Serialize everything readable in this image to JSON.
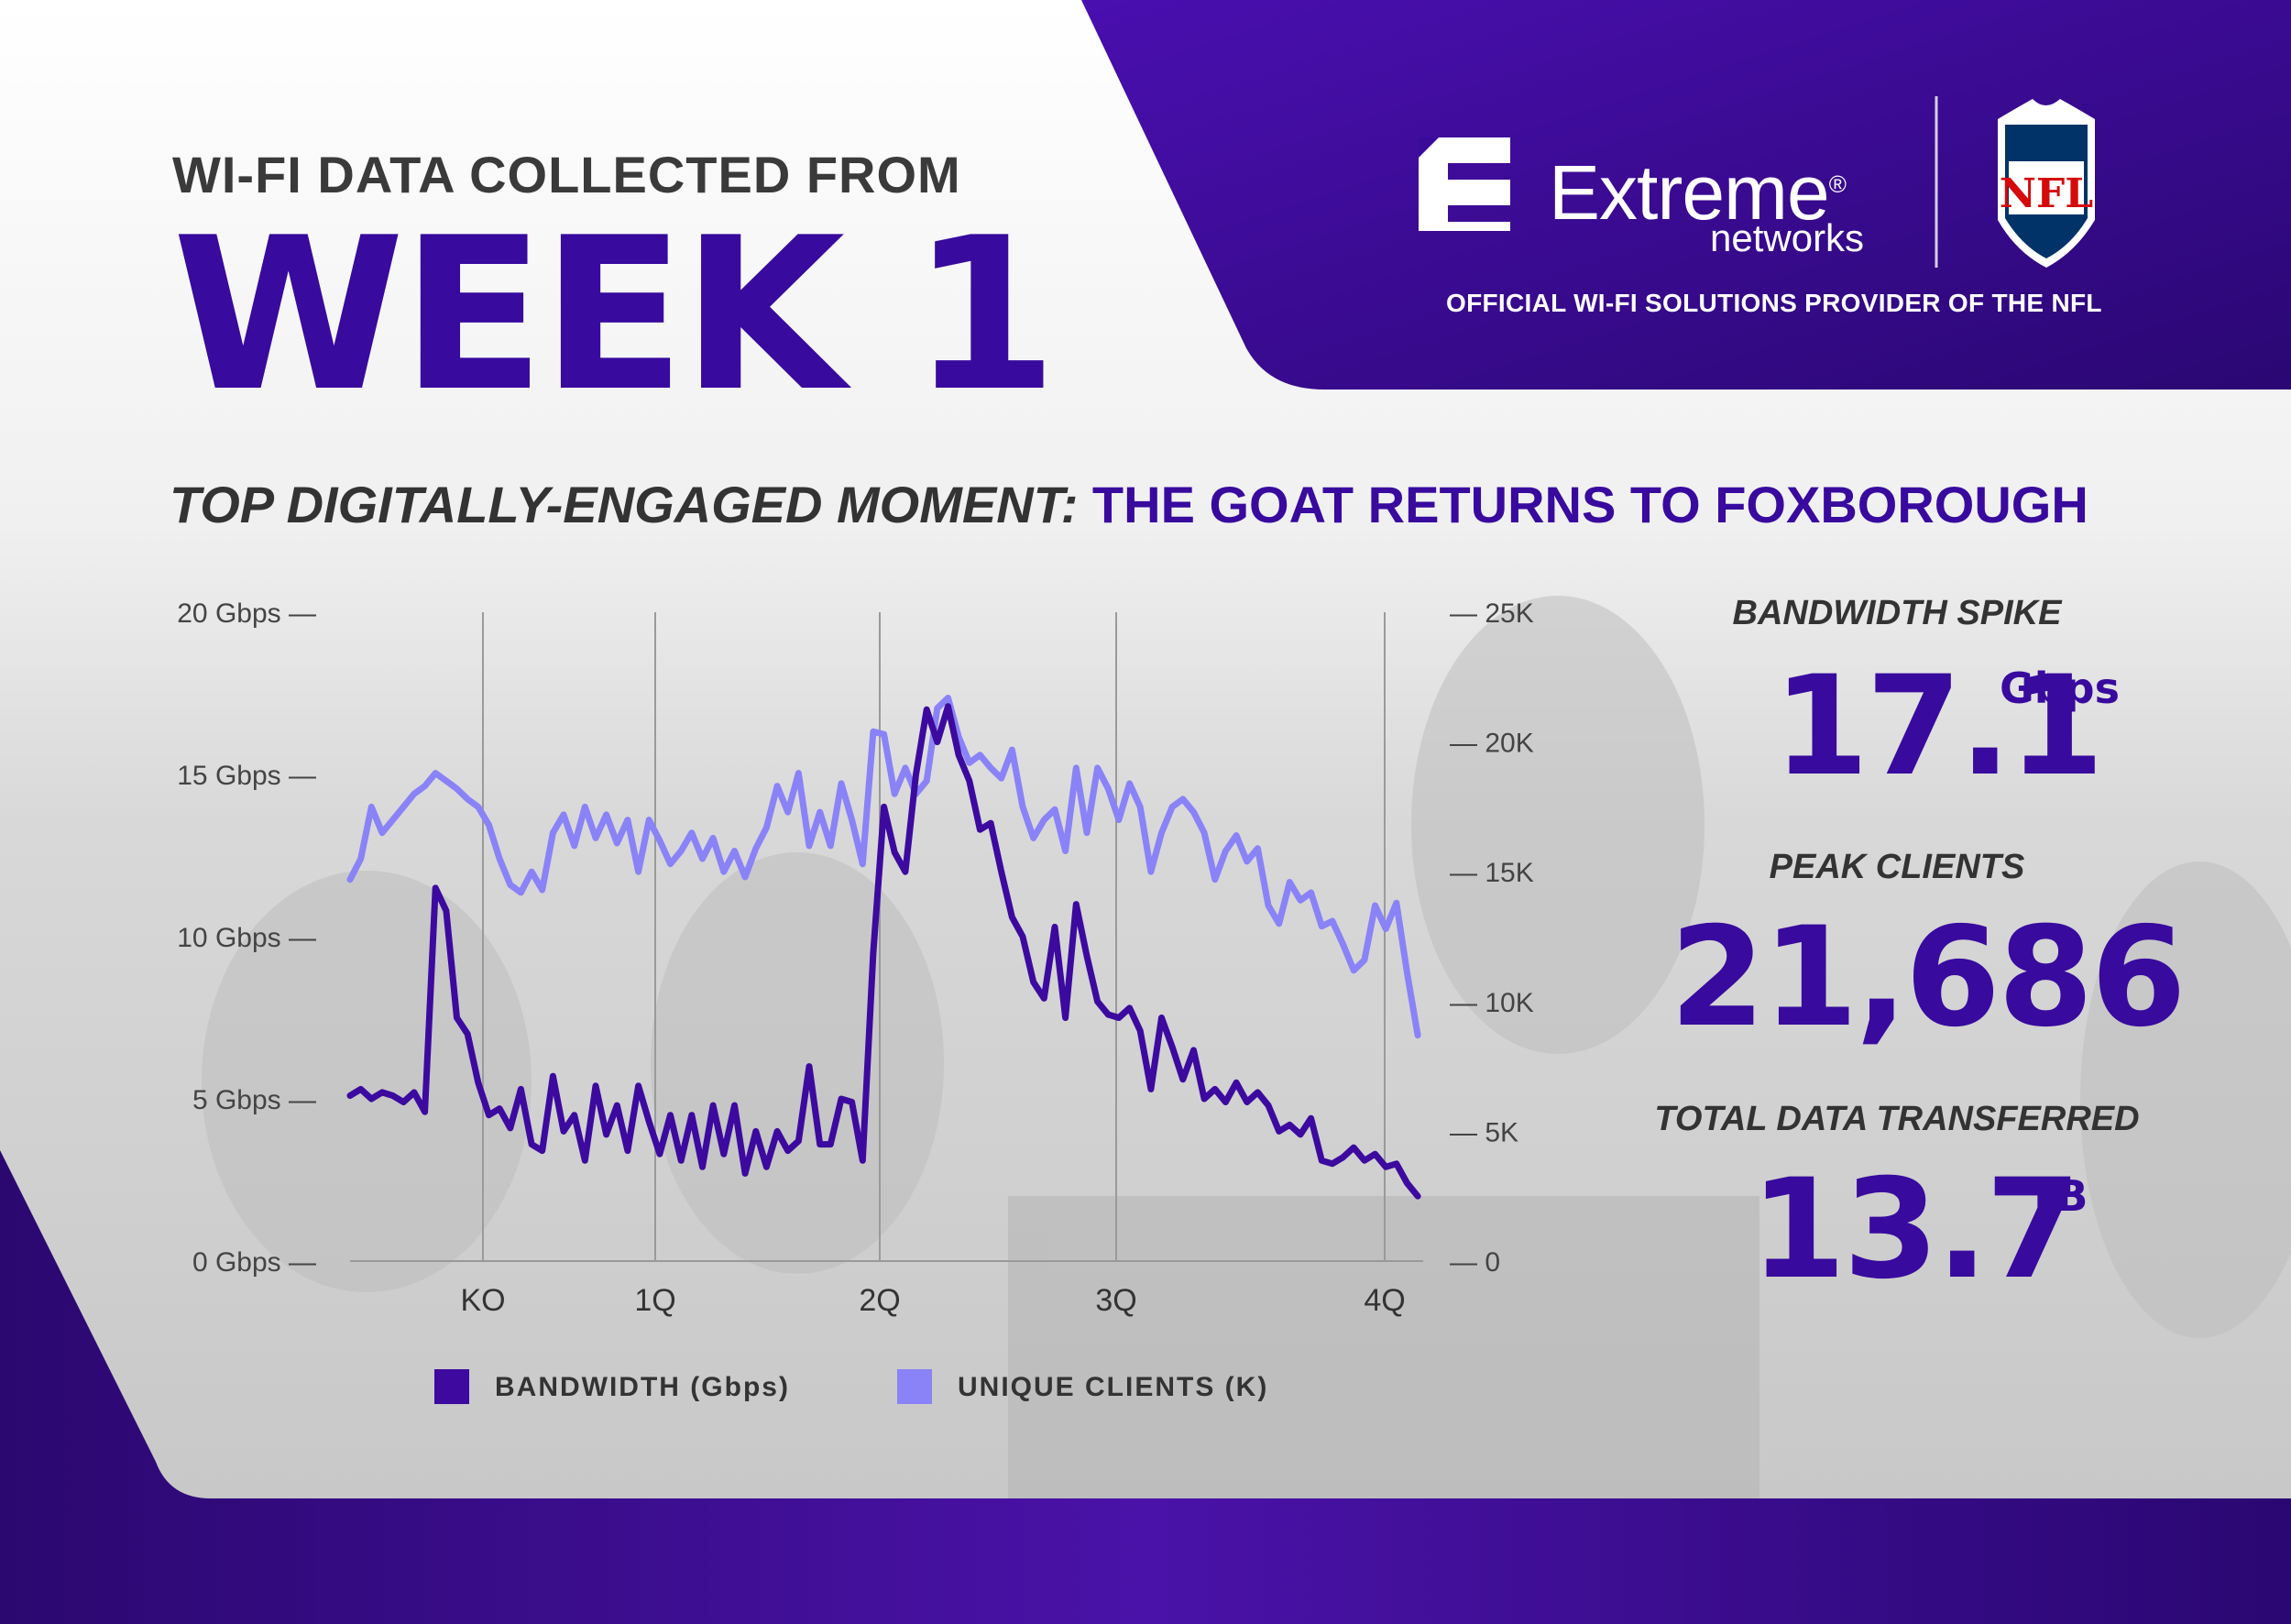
{
  "header": {
    "label": "WI-FI DATA COLLECTED FROM",
    "week": "WEEK 1"
  },
  "brand": {
    "name": "Extreme",
    "registered": "®",
    "sub": "networks",
    "tagline": "OFFICIAL WI-FI SOLUTIONS PROVIDER OF THE NFL",
    "partner_logo": "NFL"
  },
  "moment": {
    "lead": "TOP DIGITALLY-ENGAGED MOMENT:",
    "title": "THE GOAT RETURNS TO FOXBOROUGH"
  },
  "stats": [
    {
      "label": "BANDWIDTH SPIKE",
      "value": "17.1",
      "unit": "Gbps"
    },
    {
      "label": "PEAK CLIENTS",
      "value": "21,686",
      "unit": ""
    },
    {
      "label": "TOTAL DATA TRANSFERRED",
      "value": "13.7",
      "unit": "TB"
    }
  ],
  "colors": {
    "brand_purple": "#380a9e",
    "bandwidth_line": "#3c0a9f",
    "clients_line": "#8a82f7",
    "dark_band": "#2a0a72"
  },
  "chart_data": {
    "type": "line",
    "x_categories": [
      "KO",
      "1Q",
      "2Q",
      "3Q",
      "4Q"
    ],
    "y_left": {
      "ticks": [
        "0 Gbps",
        "5 Gbps",
        "10 Gbps",
        "15 Gbps",
        "20 Gbps"
      ],
      "range": [
        0,
        20
      ]
    },
    "y_right": {
      "ticks": [
        "0",
        "5K",
        "10K",
        "15K",
        "20K",
        "25K"
      ],
      "range": [
        0,
        25
      ]
    },
    "grid_vertical": true,
    "legend_position": "bottom",
    "series": [
      {
        "name": "BANDWIDTH (Gbps)",
        "axis": "left",
        "color": "#3c0a9f",
        "x": [
          0,
          1,
          2,
          3,
          4,
          5,
          6,
          7,
          8,
          9,
          10,
          11,
          12,
          13,
          14,
          15,
          16,
          17,
          18,
          19,
          20,
          21,
          22,
          23,
          24,
          25,
          26,
          27,
          28,
          29,
          30,
          31,
          32,
          33,
          34,
          35,
          36,
          37,
          38,
          39,
          40,
          41,
          42,
          43,
          44,
          45,
          46,
          47,
          48,
          49,
          50,
          51,
          52,
          53,
          54,
          55,
          56,
          57,
          58,
          59,
          60,
          61,
          62,
          63,
          64,
          65,
          66,
          67,
          68,
          69,
          70,
          71,
          72,
          73,
          74,
          75,
          76,
          77,
          78,
          79,
          80,
          81,
          82,
          83,
          84,
          85,
          86,
          87,
          88,
          89,
          90,
          91,
          92,
          93,
          94,
          95,
          96,
          97,
          98,
          99,
          100
        ],
        "values": [
          5.1,
          5.3,
          5.0,
          5.2,
          5.1,
          4.9,
          5.2,
          4.6,
          11.5,
          10.8,
          7.5,
          7.0,
          5.5,
          4.5,
          4.7,
          4.1,
          5.3,
          3.6,
          3.4,
          5.7,
          4.0,
          4.5,
          3.1,
          5.4,
          3.9,
          4.8,
          3.4,
          5.4,
          4.3,
          3.3,
          4.5,
          3.1,
          4.5,
          2.9,
          4.8,
          3.3,
          4.8,
          2.7,
          4.0,
          2.9,
          4.0,
          3.4,
          3.7,
          6.0,
          3.6,
          3.6,
          5.0,
          4.9,
          3.1,
          9.5,
          14.0,
          12.6,
          12.0,
          15.0,
          17.0,
          16.0,
          17.1,
          15.6,
          14.8,
          13.3,
          13.5,
          12.0,
          10.6,
          10.0,
          8.6,
          8.1,
          10.3,
          7.5,
          11.0,
          9.4,
          8.0,
          7.6,
          7.5,
          7.8,
          7.1,
          5.3,
          7.5,
          6.6,
          5.6,
          6.5,
          5.0,
          5.3,
          4.9,
          5.5,
          4.9,
          5.2,
          4.8,
          4.0,
          4.2,
          3.9,
          4.4,
          3.1,
          3.0,
          3.2,
          3.5,
          3.1,
          3.3,
          2.9,
          3.0,
          2.4,
          2.0
        ]
      },
      {
        "name": "UNIQUE CLIENTS (K)",
        "axis": "right",
        "color": "#8a82f7",
        "x": [
          0,
          1,
          2,
          3,
          4,
          5,
          6,
          7,
          8,
          9,
          10,
          11,
          12,
          13,
          14,
          15,
          16,
          17,
          18,
          19,
          20,
          21,
          22,
          23,
          24,
          25,
          26,
          27,
          28,
          29,
          30,
          31,
          32,
          33,
          34,
          35,
          36,
          37,
          38,
          39,
          40,
          41,
          42,
          43,
          44,
          45,
          46,
          47,
          48,
          49,
          50,
          51,
          52,
          53,
          54,
          55,
          56,
          57,
          58,
          59,
          60,
          61,
          62,
          63,
          64,
          65,
          66,
          67,
          68,
          69,
          70,
          71,
          72,
          73,
          74,
          75,
          76,
          77,
          78,
          79,
          80,
          81,
          82,
          83,
          84,
          85,
          86,
          87,
          88,
          89,
          90,
          91,
          92,
          93,
          94,
          95,
          96,
          97,
          98,
          99,
          100
        ],
        "values": [
          14.7,
          15.5,
          17.5,
          16.5,
          17.0,
          17.5,
          18.0,
          18.3,
          18.8,
          18.5,
          18.2,
          17.8,
          17.5,
          16.8,
          15.5,
          14.5,
          14.2,
          15.0,
          14.3,
          16.5,
          17.2,
          16.0,
          17.5,
          16.3,
          17.2,
          16.1,
          17.0,
          15.0,
          17.0,
          16.2,
          15.3,
          15.8,
          16.5,
          15.5,
          16.3,
          15.0,
          15.8,
          14.8,
          15.9,
          16.7,
          18.3,
          17.3,
          18.8,
          16.0,
          17.3,
          16.0,
          18.4,
          17.0,
          15.3,
          20.4,
          20.3,
          18.0,
          19.0,
          18.0,
          18.5,
          21.3,
          21.7,
          20.2,
          19.2,
          19.5,
          19.0,
          18.6,
          19.7,
          17.5,
          16.3,
          17.0,
          17.4,
          15.8,
          19.0,
          16.5,
          19.0,
          18.2,
          17.0,
          18.4,
          17.5,
          15.0,
          16.5,
          17.5,
          17.8,
          17.3,
          16.5,
          14.7,
          15.8,
          16.4,
          15.4,
          15.9,
          13.7,
          13.0,
          14.6,
          13.9,
          14.2,
          12.9,
          13.1,
          12.2,
          11.2,
          11.6,
          13.7,
          12.8,
          13.8,
          11.1,
          8.7
        ]
      }
    ]
  }
}
